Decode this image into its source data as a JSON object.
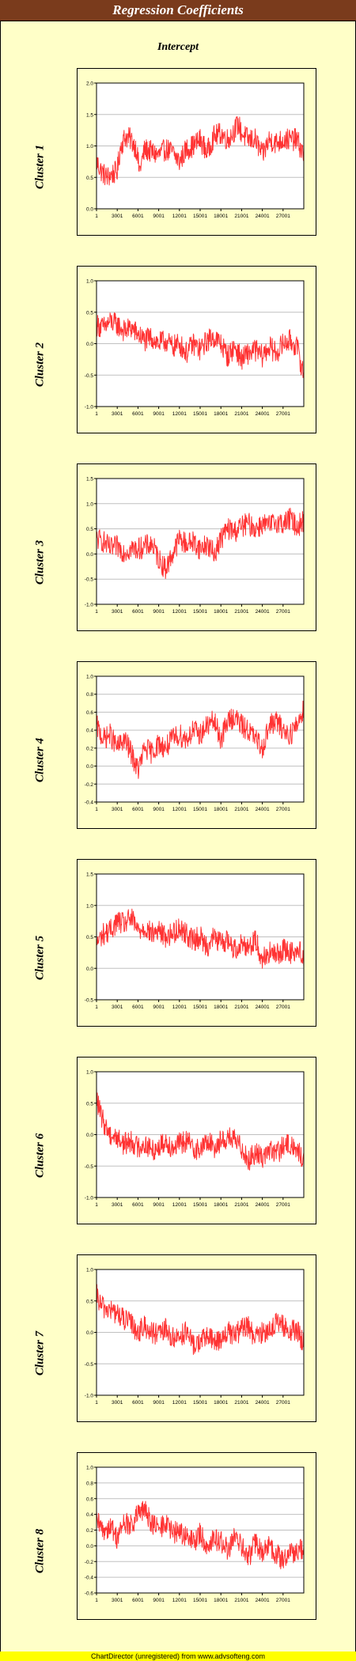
{
  "header": {
    "title": "Regression Coefficients",
    "subtitle": "Intercept"
  },
  "footer": {
    "text": "ChartDirector (unregistered) from www.advsofteng.com"
  },
  "colors": {
    "background": "#ffffc8",
    "title_bar": "#7a3b1c",
    "line": "#ff3333",
    "grid": "#c0c0c0",
    "footer": "#ffff00"
  },
  "chart_data": [
    {
      "type": "line",
      "title": "Cluster 1",
      "x_ticks": [
        "1",
        "3001",
        "6001",
        "9001",
        "12001",
        "15001",
        "18001",
        "21001",
        "24001",
        "27001"
      ],
      "xlim": [
        1,
        30000
      ],
      "ylim": [
        0,
        2.0
      ],
      "y_ticks": [
        "0.0",
        "0.5",
        "1.0",
        "1.5",
        "2.0"
      ],
      "y_tick_values": [
        0,
        0.5,
        1.0,
        1.5,
        2.0
      ],
      "x": [
        1,
        700,
        1500,
        2300,
        3000,
        3500,
        4200,
        5000,
        5800,
        6200,
        7000,
        8000,
        9000,
        10000,
        11000,
        12000,
        13000,
        14000,
        15000,
        16000,
        17000,
        18000,
        19000,
        20000,
        20500,
        21000,
        22000,
        23000,
        24000,
        25000,
        26000,
        27000,
        28000,
        29000,
        30000
      ],
      "y": [
        0.75,
        0.6,
        0.5,
        0.55,
        0.6,
        1.0,
        1.15,
        1.1,
        0.95,
        0.6,
        0.95,
        0.9,
        0.85,
        0.95,
        0.9,
        0.75,
        0.95,
        1.0,
        1.1,
        0.9,
        1.15,
        1.2,
        1.1,
        1.25,
        1.35,
        1.2,
        1.1,
        1.1,
        0.85,
        1.1,
        1.05,
        1.1,
        1.1,
        1.1,
        0.85
      ]
    },
    {
      "type": "line",
      "title": "Cluster 2",
      "x_ticks": [
        "1",
        "3001",
        "6001",
        "9001",
        "12001",
        "15001",
        "18001",
        "21001",
        "24001",
        "27001"
      ],
      "xlim": [
        1,
        30000
      ],
      "ylim": [
        -1.0,
        1.0
      ],
      "y_ticks": [
        "-1.0",
        "-0.5",
        "0.0",
        "0.5",
        "1.0"
      ],
      "y_tick_values": [
        -1.0,
        -0.5,
        0,
        0.5,
        1.0
      ],
      "x": [
        1,
        1000,
        2000,
        3000,
        4000,
        5000,
        6000,
        7000,
        8000,
        9000,
        10000,
        11000,
        12000,
        13000,
        14000,
        15000,
        16000,
        17000,
        18000,
        19000,
        20000,
        21000,
        22000,
        23000,
        24000,
        25000,
        26000,
        27000,
        28000,
        29000,
        30000
      ],
      "y": [
        0.3,
        0.25,
        0.35,
        0.3,
        0.2,
        0.25,
        0.15,
        0.05,
        0.1,
        0.0,
        0.05,
        -0.05,
        0.0,
        -0.15,
        0.0,
        -0.1,
        0.05,
        0.1,
        0.0,
        -0.2,
        -0.05,
        -0.25,
        -0.15,
        -0.1,
        -0.2,
        -0.05,
        -0.15,
        0.0,
        0.05,
        -0.05,
        -0.5
      ]
    },
    {
      "type": "line",
      "title": "Cluster 3",
      "x_ticks": [
        "1",
        "3001",
        "6001",
        "9001",
        "12001",
        "15001",
        "18001",
        "21001",
        "24001",
        "27001"
      ],
      "xlim": [
        1,
        30000
      ],
      "ylim": [
        -1.0,
        1.5
      ],
      "y_ticks": [
        "-1.0",
        "-0.5",
        "0.0",
        "0.5",
        "1.0",
        "1.5"
      ],
      "y_tick_values": [
        -1.0,
        -0.5,
        0,
        0.5,
        1.0,
        1.5
      ],
      "x": [
        1,
        1000,
        2000,
        3000,
        4000,
        5000,
        6000,
        7000,
        8000,
        9000,
        10000,
        11000,
        12000,
        13000,
        14000,
        15000,
        16000,
        17000,
        18000,
        19000,
        20000,
        21000,
        22000,
        23000,
        24000,
        25000,
        26000,
        27000,
        28000,
        29000,
        30000
      ],
      "y": [
        0.3,
        0.25,
        0.1,
        0.15,
        0.05,
        0.1,
        0.1,
        0.15,
        0.2,
        -0.1,
        -0.3,
        0.0,
        0.3,
        0.2,
        0.25,
        0.1,
        0.2,
        0.0,
        0.3,
        0.5,
        0.45,
        0.55,
        0.6,
        0.5,
        0.6,
        0.55,
        0.65,
        0.6,
        0.7,
        0.55,
        0.65
      ]
    },
    {
      "type": "line",
      "title": "Cluster 4",
      "x_ticks": [
        "1",
        "3001",
        "6001",
        "9001",
        "12001",
        "15001",
        "18001",
        "21001",
        "24001",
        "27001"
      ],
      "xlim": [
        1,
        30000
      ],
      "ylim": [
        -0.4,
        1.0
      ],
      "y_ticks": [
        "-0.4",
        "-0.2",
        "0.0",
        "0.2",
        "0.4",
        "0.6",
        "0.8",
        "1.0"
      ],
      "y_tick_values": [
        -0.4,
        -0.2,
        0,
        0.2,
        0.4,
        0.6,
        0.8,
        1.0
      ],
      "x": [
        1,
        1000,
        2000,
        3000,
        4000,
        5000,
        6000,
        7000,
        8000,
        9000,
        10000,
        11000,
        12000,
        13000,
        14000,
        15000,
        16000,
        17000,
        18000,
        19000,
        20000,
        21000,
        22000,
        23000,
        24000,
        25000,
        26000,
        27000,
        28000,
        29000,
        30000
      ],
      "y": [
        0.45,
        0.3,
        0.35,
        0.2,
        0.3,
        0.15,
        -0.05,
        0.2,
        0.15,
        0.25,
        0.2,
        0.3,
        0.35,
        0.3,
        0.4,
        0.35,
        0.45,
        0.5,
        0.3,
        0.5,
        0.55,
        0.45,
        0.4,
        0.3,
        0.2,
        0.45,
        0.5,
        0.4,
        0.35,
        0.45,
        0.65
      ]
    },
    {
      "type": "line",
      "title": "Cluster 5",
      "x_ticks": [
        "1",
        "3001",
        "6001",
        "9001",
        "12001",
        "15001",
        "18001",
        "21001",
        "24001",
        "27001"
      ],
      "xlim": [
        1,
        30000
      ],
      "ylim": [
        -0.5,
        1.5
      ],
      "y_ticks": [
        "-0.5",
        "0.0",
        "0.5",
        "1.0",
        "1.5"
      ],
      "y_tick_values": [
        -0.5,
        0,
        0.5,
        1.0,
        1.5
      ],
      "x": [
        1,
        1000,
        2000,
        3000,
        4000,
        5000,
        6000,
        7000,
        8000,
        9000,
        10000,
        11000,
        12000,
        13000,
        14000,
        15000,
        16000,
        17000,
        18000,
        19000,
        20000,
        21000,
        22000,
        23000,
        24000,
        25000,
        26000,
        27000,
        28000,
        29000,
        30000
      ],
      "y": [
        0.4,
        0.55,
        0.6,
        0.75,
        0.7,
        0.8,
        0.6,
        0.65,
        0.55,
        0.6,
        0.5,
        0.55,
        0.65,
        0.55,
        0.45,
        0.5,
        0.35,
        0.5,
        0.4,
        0.45,
        0.3,
        0.4,
        0.35,
        0.45,
        0.15,
        0.25,
        0.2,
        0.3,
        0.25,
        0.3,
        0.2
      ]
    },
    {
      "type": "line",
      "title": "Cluster 6",
      "x_ticks": [
        "1",
        "3001",
        "6001",
        "9001",
        "12001",
        "15001",
        "18001",
        "21001",
        "24001",
        "27001"
      ],
      "xlim": [
        1,
        30000
      ],
      "ylim": [
        -1.0,
        1.0
      ],
      "y_ticks": [
        "-1.0",
        "-0.5",
        "0.0",
        "0.5",
        "1.0"
      ],
      "y_tick_values": [
        -1.0,
        -0.5,
        0,
        0.5,
        1.0
      ],
      "x": [
        1,
        500,
        1000,
        2000,
        3000,
        4000,
        5000,
        6000,
        7000,
        8000,
        9000,
        10000,
        11000,
        12000,
        13000,
        14000,
        15000,
        16000,
        17000,
        18000,
        19000,
        20000,
        21000,
        22000,
        23000,
        24000,
        25000,
        26000,
        27000,
        28000,
        29000,
        30000
      ],
      "y": [
        0.6,
        0.35,
        0.2,
        0.0,
        -0.05,
        -0.15,
        -0.1,
        -0.2,
        -0.15,
        -0.25,
        -0.2,
        -0.1,
        -0.2,
        -0.15,
        -0.1,
        -0.2,
        -0.25,
        -0.1,
        -0.2,
        -0.1,
        -0.05,
        -0.1,
        -0.2,
        -0.4,
        -0.3,
        -0.35,
        -0.25,
        -0.3,
        -0.2,
        -0.15,
        -0.25,
        -0.4
      ]
    },
    {
      "type": "line",
      "title": "Cluster 7",
      "x_ticks": [
        "1",
        "3001",
        "6001",
        "9001",
        "12001",
        "15001",
        "18001",
        "21001",
        "24001",
        "27001"
      ],
      "xlim": [
        1,
        30000
      ],
      "ylim": [
        -1.0,
        1.0
      ],
      "y_ticks": [
        "-1.0",
        "-0.5",
        "0.0",
        "0.5",
        "1.0"
      ],
      "y_tick_values": [
        -1.0,
        -0.5,
        0,
        0.5,
        1.0
      ],
      "x": [
        1,
        500,
        1000,
        2000,
        3000,
        4000,
        5000,
        6000,
        7000,
        8000,
        9000,
        10000,
        11000,
        12000,
        13000,
        14000,
        15000,
        16000,
        17000,
        18000,
        19000,
        20000,
        21000,
        22000,
        23000,
        24000,
        25000,
        26000,
        27000,
        28000,
        29000,
        30000
      ],
      "y": [
        0.6,
        0.45,
        0.4,
        0.35,
        0.3,
        0.2,
        0.15,
        0.0,
        0.1,
        0.0,
        -0.05,
        0.05,
        -0.1,
        -0.05,
        0.0,
        -0.2,
        -0.15,
        -0.05,
        -0.15,
        -0.1,
        0.0,
        -0.05,
        0.05,
        0.1,
        -0.1,
        0.0,
        0.05,
        0.15,
        0.1,
        0.0,
        0.05,
        -0.2
      ]
    },
    {
      "type": "line",
      "title": "Cluster 8",
      "x_ticks": [
        "1",
        "3001",
        "6001",
        "9001",
        "12001",
        "15001",
        "18001",
        "21001",
        "24001",
        "27001"
      ],
      "xlim": [
        1,
        30000
      ],
      "ylim": [
        -0.6,
        1.0
      ],
      "y_ticks": [
        "-0.6",
        "-0.4",
        "-0.2",
        "0.0",
        "0.2",
        "0.4",
        "0.6",
        "0.8",
        "1.0"
      ],
      "y_tick_values": [
        -0.6,
        -0.4,
        -0.2,
        0,
        0.2,
        0.4,
        0.6,
        0.8,
        1.0
      ],
      "x": [
        1,
        1000,
        2000,
        3000,
        4000,
        5000,
        6000,
        7000,
        8000,
        9000,
        10000,
        11000,
        12000,
        13000,
        14000,
        15000,
        16000,
        17000,
        18000,
        19000,
        20000,
        21000,
        22000,
        23000,
        24000,
        25000,
        26000,
        27000,
        28000,
        29000,
        30000
      ],
      "y": [
        0.3,
        0.2,
        0.25,
        0.1,
        0.3,
        0.25,
        0.4,
        0.45,
        0.3,
        0.2,
        0.3,
        0.15,
        0.2,
        0.1,
        0.05,
        0.15,
        0.0,
        0.1,
        0.05,
        -0.05,
        0.1,
        0.0,
        -0.15,
        0.05,
        -0.1,
        0.0,
        -0.1,
        -0.2,
        -0.05,
        -0.1,
        0.0
      ]
    }
  ]
}
